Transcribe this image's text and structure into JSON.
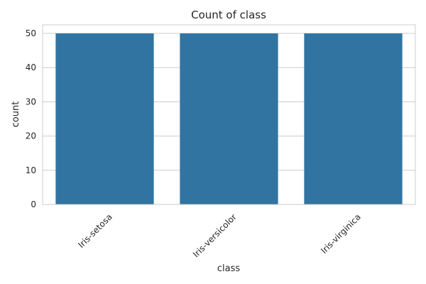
{
  "chart_data": {
    "type": "bar",
    "title": "Count of class",
    "xlabel": "class",
    "ylabel": "count",
    "categories": [
      "Iris-setosa",
      "Iris-versicolor",
      "Iris-virginica"
    ],
    "values": [
      50,
      50,
      50
    ],
    "ylim": [
      0,
      52.5
    ],
    "yticks": [
      0,
      10,
      20,
      30,
      40,
      50
    ],
    "grid": true,
    "legend": "none",
    "colors": {
      "bar": "#3274a1",
      "grid": "#cccccc",
      "frame": "#cccccc",
      "text": "#262626"
    }
  }
}
